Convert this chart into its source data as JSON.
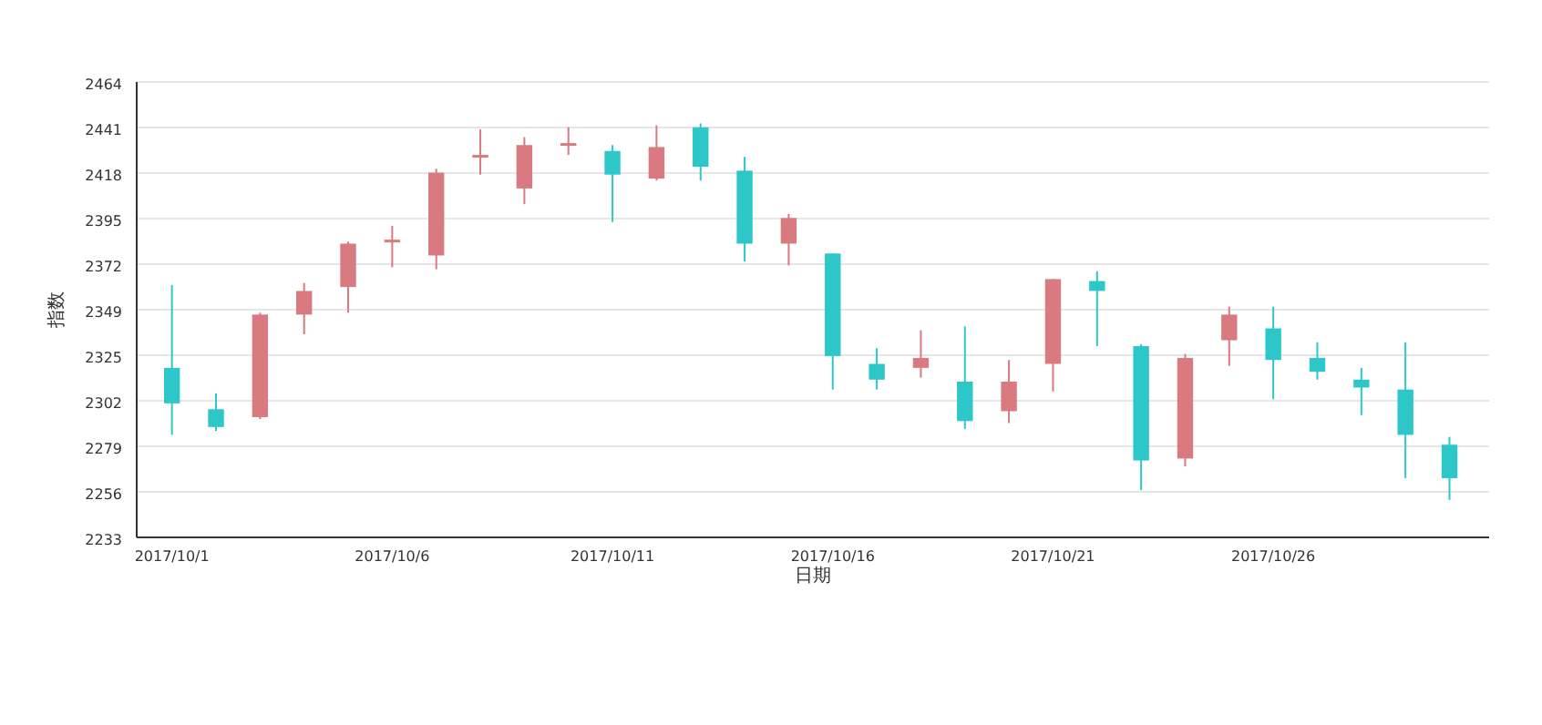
{
  "chart_data": {
    "type": "candlestick",
    "xlabel": "日期",
    "ylabel": "指数",
    "categories": [
      "2017/10/1",
      null,
      null,
      null,
      null,
      "2017/10/6",
      null,
      null,
      null,
      null,
      "2017/10/11",
      null,
      null,
      null,
      null,
      "2017/10/16",
      null,
      null,
      null,
      null,
      "2017/10/21",
      null,
      null,
      null,
      null,
      "2017/10/26",
      null,
      null,
      null,
      null
    ],
    "ohlc": [
      [
        2319,
        2361,
        2285,
        2301
      ],
      [
        2298,
        2306,
        2287,
        2289
      ],
      [
        2294,
        2347,
        2293,
        2346
      ],
      [
        2346,
        2362,
        2336,
        2358
      ],
      [
        2360,
        2383,
        2347,
        2382
      ],
      [
        2383,
        2391,
        2370,
        2384
      ],
      [
        2376,
        2420,
        2369,
        2418
      ],
      [
        2426,
        2440,
        2417,
        2427
      ],
      [
        2410,
        2436,
        2402,
        2432
      ],
      [
        2432,
        2441,
        2427,
        2433
      ],
      [
        2429,
        2432,
        2393,
        2417
      ],
      [
        2415,
        2442,
        2414,
        2431
      ],
      [
        2441,
        2443,
        2414,
        2421
      ],
      [
        2419,
        2426,
        2373,
        2382
      ],
      [
        2382,
        2397,
        2371,
        2395
      ],
      [
        2377,
        2377,
        2308,
        2325
      ],
      [
        2321,
        2329,
        2308,
        2313
      ],
      [
        2319,
        2338,
        2314,
        2324
      ],
      [
        2312,
        2340,
        2288,
        2292
      ],
      [
        2297,
        2323,
        2291,
        2312
      ],
      [
        2321,
        2364,
        2307,
        2364
      ],
      [
        2363,
        2368,
        2330,
        2358
      ],
      [
        2330,
        2331,
        2257,
        2272
      ],
      [
        2273,
        2326,
        2269,
        2324
      ],
      [
        2333,
        2350,
        2320,
        2346
      ],
      [
        2339,
        2350,
        2303,
        2323
      ],
      [
        2324,
        2332,
        2313,
        2317
      ],
      [
        2313,
        2319,
        2295,
        2309
      ],
      [
        2308,
        2332,
        2263,
        2285
      ],
      [
        2280,
        2284,
        2252,
        2263
      ]
    ],
    "colors": [
      "#2ec7c9",
      "#2ec7c9",
      "#d87a80",
      "#d87a80",
      "#d87a80",
      "#d87a80",
      "#d87a80",
      "#d87a80",
      "#d87a80",
      "#d87a80",
      "#2ec7c9",
      "#d87a80",
      "#2ec7c9",
      "#2ec7c9",
      "#d87a80",
      "#2ec7c9",
      "#2ec7c9",
      "#d87a80",
      "#2ec7c9",
      "#d87a80",
      "#d87a80",
      "#2ec7c9",
      "#2ec7c9",
      "#d87a80",
      "#d87a80",
      "#2ec7c9",
      "#2ec7c9",
      "#2ec7c9",
      "#2ec7c9",
      "#2ec7c9"
    ],
    "ylim": [
      2233,
      2464
    ],
    "yticks": [
      2233,
      {
        "value": 2256.1,
        "label": "2256"
      },
      {
        "value": 2279.2,
        "label": "2279"
      },
      {
        "value": 2302.3,
        "label": "2302"
      },
      {
        "value": 2325.4,
        "label": "2325"
      },
      {
        "value": 2348.5,
        "label": "2349"
      },
      {
        "value": 2371.6,
        "label": "2372"
      },
      {
        "value": 2394.7,
        "label": "2395"
      },
      {
        "value": 2417.8,
        "label": "2418"
      },
      {
        "value": 2440.9,
        "label": "2441"
      },
      2464
    ],
    "grid": "y"
  }
}
